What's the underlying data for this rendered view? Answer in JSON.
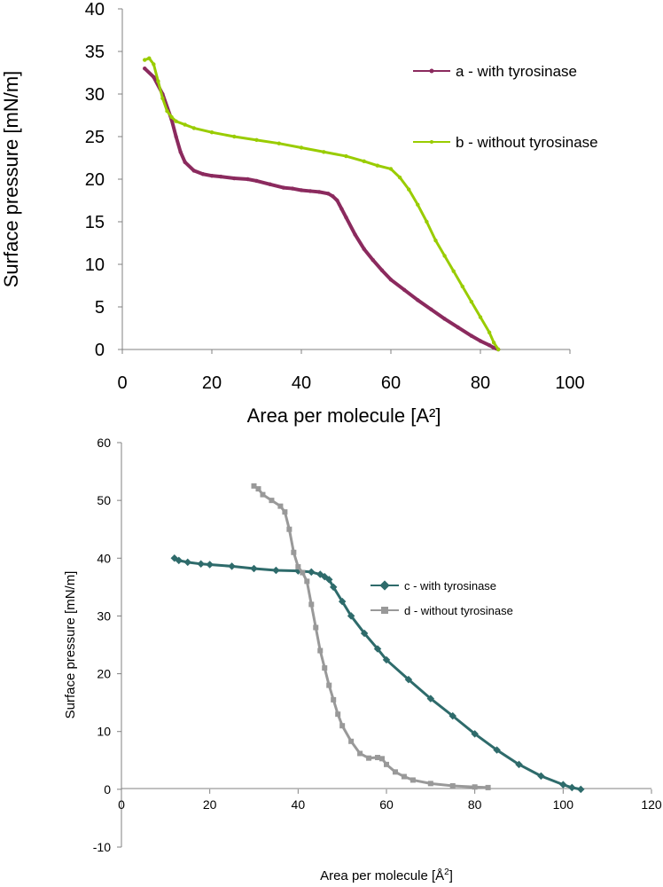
{
  "chart_data": [
    {
      "type": "line",
      "title": "",
      "xlabel": "Area per molecule [A²]",
      "ylabel": "Surface pressure [mN/m]",
      "xlim": [
        0,
        100
      ],
      "ylim": [
        0,
        40
      ],
      "xticks": [
        0,
        20,
        40,
        60,
        80,
        100
      ],
      "yticks": [
        0,
        5,
        10,
        15,
        20,
        25,
        30,
        35,
        40
      ],
      "legend": "right",
      "series": [
        {
          "name": "a - with tyrosinase",
          "color": "#8b2a5e",
          "x": [
            5,
            7,
            9,
            11,
            12,
            13,
            14,
            16,
            18,
            20,
            22,
            25,
            28,
            30,
            33,
            36,
            38,
            40,
            42,
            44,
            46,
            47,
            48,
            49,
            50,
            52,
            54,
            56,
            58,
            60,
            63,
            66,
            69,
            72,
            75,
            78,
            80,
            82,
            83,
            84
          ],
          "y": [
            33,
            32,
            30,
            27,
            25,
            23.2,
            22,
            21,
            20.6,
            20.4,
            20.3,
            20.1,
            20.0,
            19.8,
            19.4,
            19.0,
            18.9,
            18.7,
            18.6,
            18.5,
            18.3,
            18.0,
            17.5,
            16.5,
            15.5,
            13.5,
            11.8,
            10.5,
            9.3,
            8.2,
            7.0,
            5.8,
            4.7,
            3.6,
            2.6,
            1.6,
            1.0,
            0.5,
            0.2,
            0
          ]
        },
        {
          "name": "b - without tyrosinase",
          "color": "#99cc00",
          "x": [
            5,
            6,
            7,
            8,
            9,
            10,
            11,
            12,
            14,
            16,
            20,
            25,
            30,
            35,
            40,
            45,
            50,
            54,
            57,
            60,
            62,
            64,
            66,
            68,
            70,
            72,
            74,
            76,
            78,
            80,
            82,
            83,
            84
          ],
          "y": [
            34,
            34.2,
            33.5,
            31.5,
            29.5,
            28,
            27.3,
            26.8,
            26.4,
            26,
            25.5,
            25,
            24.6,
            24.2,
            23.7,
            23.2,
            22.7,
            22.1,
            21.6,
            21.2,
            20.2,
            18.8,
            17.0,
            15.0,
            12.8,
            11.0,
            9.2,
            7.4,
            5.6,
            3.8,
            2.0,
            0.8,
            0
          ]
        }
      ]
    },
    {
      "type": "line",
      "title": "",
      "xlabel": "Area per molecule [Å²]",
      "ylabel": "Surface pressure [mN/m]",
      "xlim": [
        0,
        120
      ],
      "ylim": [
        -10,
        60
      ],
      "xticks": [
        0,
        20,
        40,
        60,
        80,
        100,
        120
      ],
      "yticks": [
        -10,
        0,
        10,
        20,
        30,
        40,
        50,
        60
      ],
      "legend": "right",
      "series": [
        {
          "name": "c - with tyrosinase",
          "color": "#2e6b6b",
          "x": [
            12,
            13,
            15,
            18,
            20,
            25,
            30,
            35,
            40,
            43,
            45,
            46,
            47,
            48,
            50,
            52,
            55,
            58,
            60,
            65,
            70,
            75,
            80,
            85,
            90,
            95,
            100,
            102,
            104
          ],
          "y": [
            40,
            39.6,
            39.3,
            39,
            38.9,
            38.6,
            38.2,
            37.9,
            37.8,
            37.6,
            37.2,
            36.8,
            36.3,
            35,
            32.5,
            30,
            27,
            24.3,
            22.4,
            19,
            15.7,
            12.7,
            9.6,
            6.8,
            4.3,
            2.3,
            0.8,
            0.3,
            0
          ]
        },
        {
          "name": "d - without tyrosinase",
          "color": "#999999",
          "x": [
            30,
            31,
            32,
            34,
            36,
            37,
            38,
            39,
            40,
            41,
            42,
            43,
            44,
            45,
            46,
            47,
            48,
            49,
            50,
            52,
            54,
            56,
            58,
            59,
            60,
            62,
            64,
            66,
            70,
            75,
            80,
            83
          ],
          "y": [
            52.5,
            52,
            51,
            50,
            49,
            48,
            45,
            41,
            38.5,
            37.5,
            36,
            32,
            28,
            24,
            21,
            18,
            15.5,
            13,
            11,
            8.3,
            6.2,
            5.4,
            5.5,
            5.3,
            4.3,
            3.0,
            2.2,
            1.6,
            1.0,
            0.6,
            0.4,
            0.3
          ]
        }
      ]
    }
  ]
}
